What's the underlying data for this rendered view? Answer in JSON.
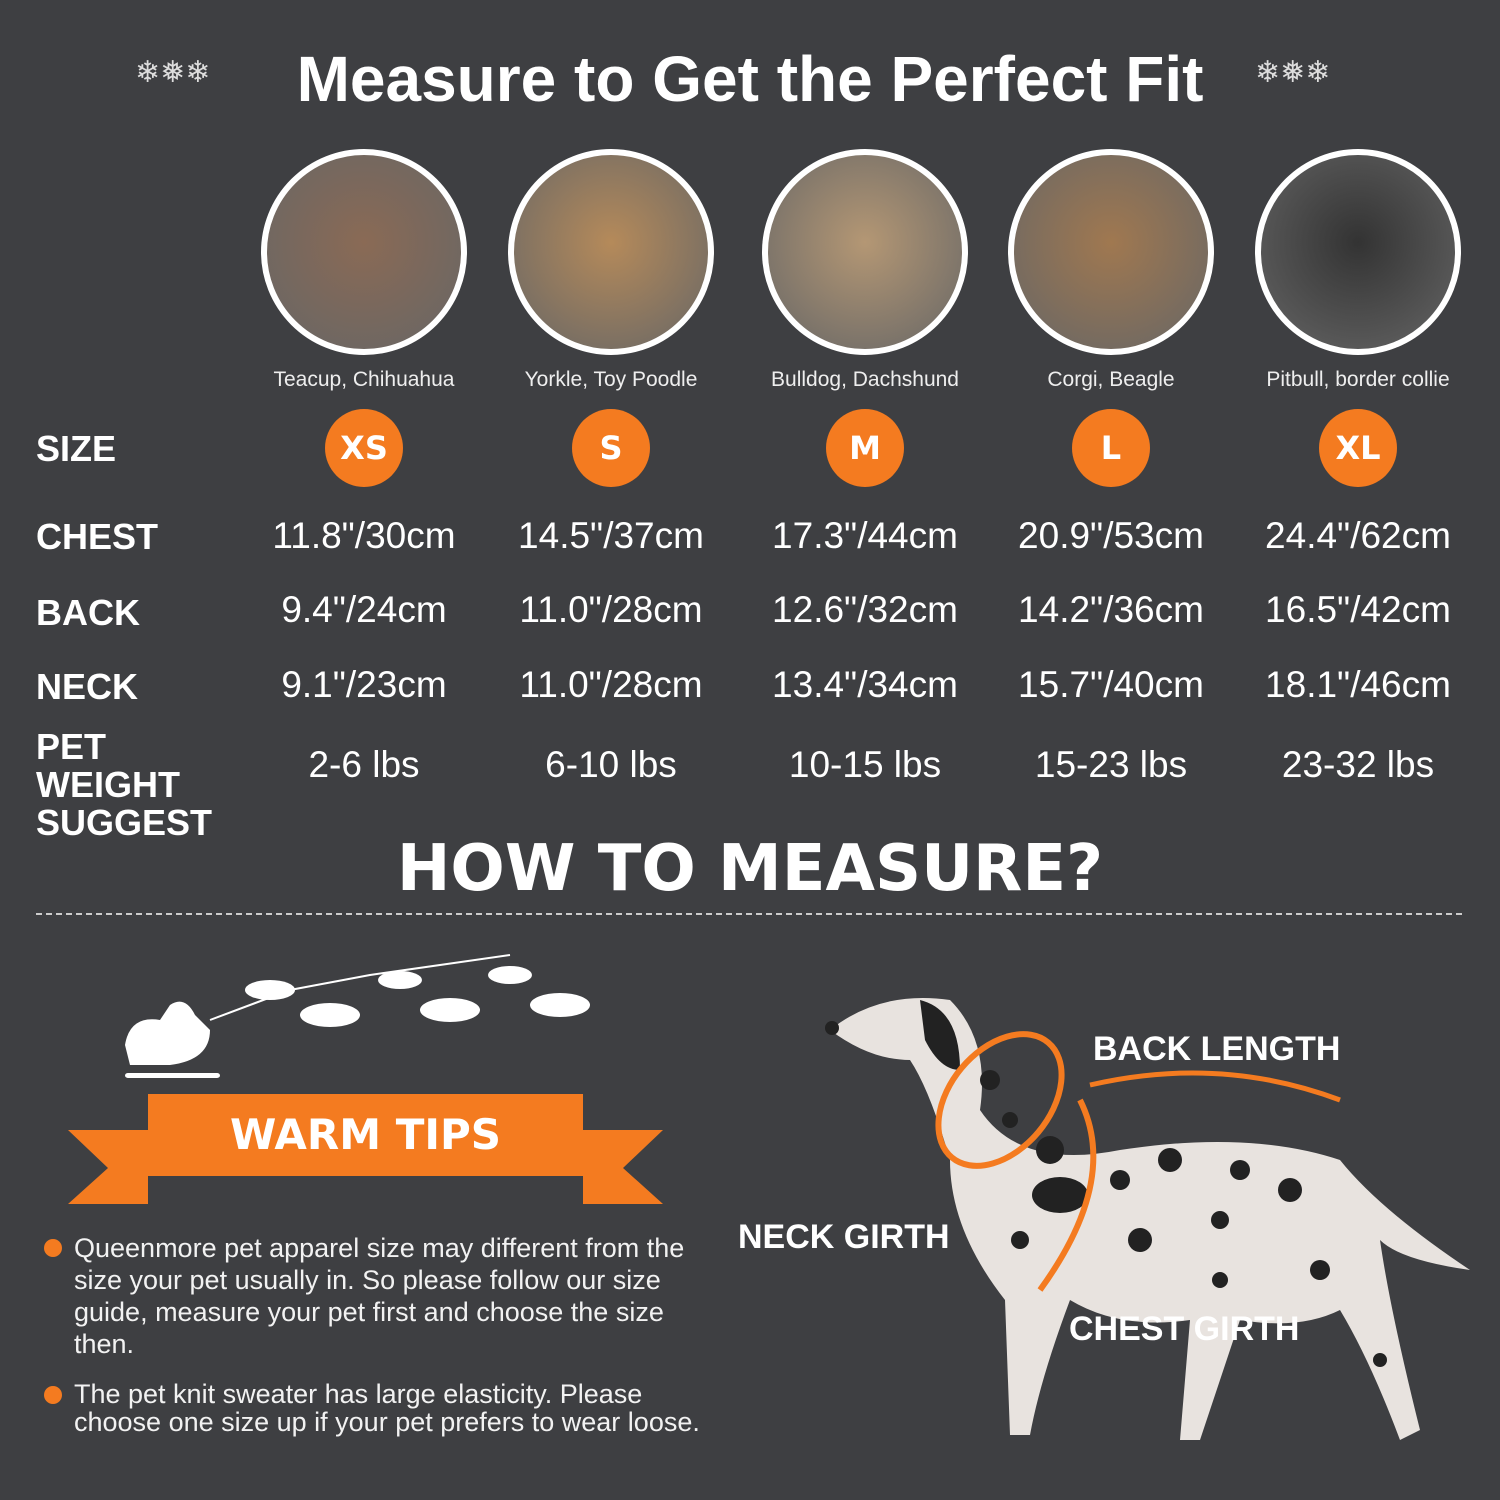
{
  "title": "Measure to Get the Perfect Fit",
  "icons": {
    "decor": "snowflake-icon"
  },
  "colors": {
    "background": "#3e3f42",
    "accent": "#f47b20"
  },
  "row_labels": {
    "size": "SIZE",
    "chest": "CHEST",
    "back": "BACK",
    "neck": "NECK",
    "weight": "PET WEIGHT SUGGEST"
  },
  "sizes": [
    {
      "breed": "Teacup, Chihuahua",
      "size": "XS",
      "chest": "11.8\"/30cm",
      "back": "9.4\"/24cm",
      "neck": "9.1\"/23cm",
      "weight": "2-6 lbs"
    },
    {
      "breed": "Yorkle, Toy Poodle",
      "size": "S",
      "chest": "14.5\"/37cm",
      "back": "11.0\"/28cm",
      "neck": "11.0\"/28cm",
      "weight": "6-10 lbs"
    },
    {
      "breed": "Bulldog, Dachshund",
      "size": "M",
      "chest": "17.3\"/44cm",
      "back": "12.6\"/32cm",
      "neck": "13.4\"/34cm",
      "weight": "10-15 lbs"
    },
    {
      "breed": "Corgi, Beagle",
      "size": "L",
      "chest": "20.9\"/53cm",
      "back": "14.2\"/36cm",
      "neck": "15.7\"/40cm",
      "weight": "15-23 lbs"
    },
    {
      "breed": "Pitbull, border collie",
      "size": "XL",
      "chest": "24.4\"/62cm",
      "back": "16.5\"/42cm",
      "neck": "18.1\"/46cm",
      "weight": "23-32 lbs"
    }
  ],
  "how_to": "HOW TO MEASURE?",
  "warm_tips": {
    "title": "WARM TIPS",
    "items": [
      "Queenmore pet apparel size may different from the size your pet usually in. So please follow our size guide, measure your pet first and choose the size then.",
      "The pet knit sweater has large elasticity. Please choose one size up if your pet prefers to wear loose."
    ]
  },
  "diagram": {
    "back": "BACK LENGTH",
    "neck": "NECK GIRTH",
    "chest": "CHEST GIRTH"
  }
}
